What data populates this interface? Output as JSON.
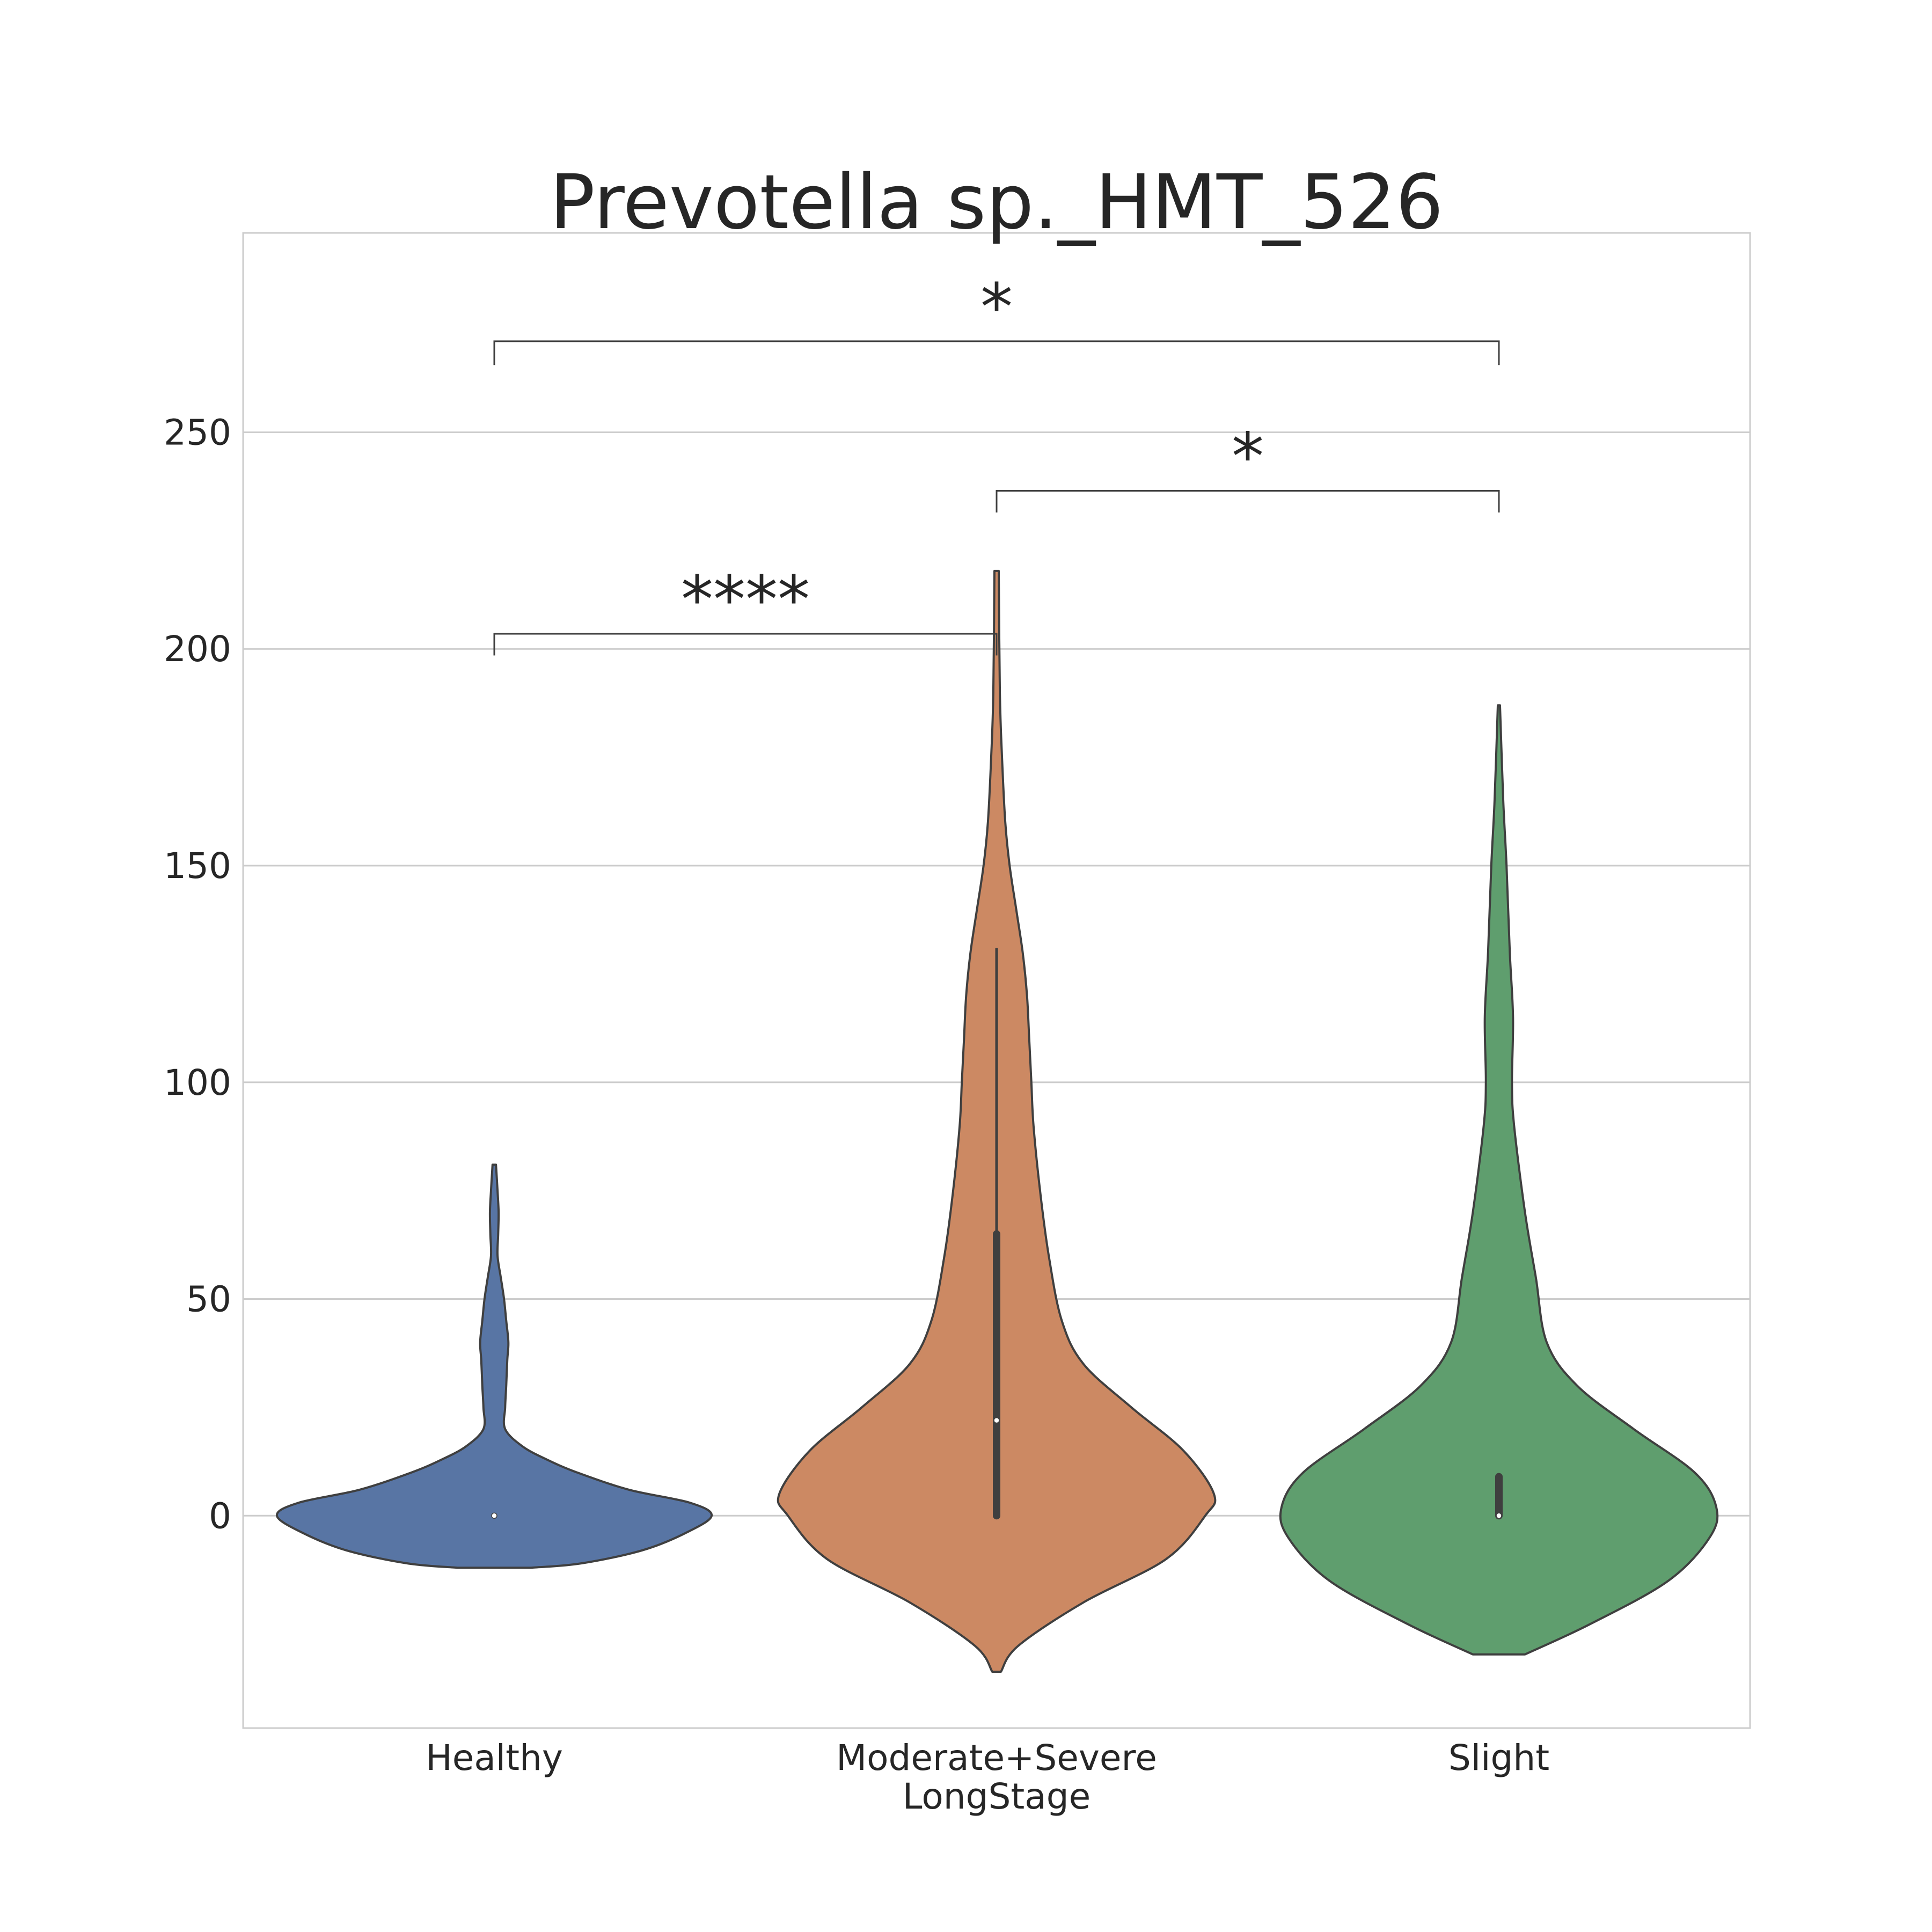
{
  "chart_data": {
    "type": "violin",
    "title": "Prevotella sp._HMT_526",
    "xlabel": "LongStage",
    "ylabel": "",
    "categories": [
      "Healthy",
      "Moderate+Severe",
      "Slight"
    ],
    "ylim": [
      -49,
      296
    ],
    "yticks": [
      0,
      50,
      100,
      150,
      200,
      250
    ],
    "grid": true,
    "colors": [
      "#5875a4",
      "#cc8963",
      "#5f9e6e"
    ],
    "outline_color": "#3f3f3f",
    "series": [
      {
        "category": "Healthy",
        "min": -12,
        "max": 81,
        "quartiles": [
          0,
          0,
          0
        ],
        "median": 0,
        "profile": [
          [
            -12,
            0.17
          ],
          [
            -11,
            0.4
          ],
          [
            -8,
            0.68
          ],
          [
            -4,
            0.88
          ],
          [
            0,
            1.0
          ],
          [
            3,
            0.9
          ],
          [
            6,
            0.62
          ],
          [
            10,
            0.38
          ],
          [
            13,
            0.24
          ],
          [
            16,
            0.13
          ],
          [
            20,
            0.05
          ],
          [
            25,
            0.05
          ],
          [
            30,
            0.055
          ],
          [
            36,
            0.06
          ],
          [
            40,
            0.065
          ],
          [
            45,
            0.055
          ],
          [
            50,
            0.045
          ],
          [
            55,
            0.03
          ],
          [
            60,
            0.015
          ],
          [
            65,
            0.018
          ],
          [
            70,
            0.02
          ],
          [
            75,
            0.015
          ],
          [
            81,
            0.008
          ]
        ]
      },
      {
        "category": "Moderate+Severe",
        "min": -36,
        "max": 218,
        "quartiles": [
          0,
          22,
          65
        ],
        "median": 22,
        "whiskers": [
          0,
          131
        ],
        "profile": [
          [
            -36,
            0.02
          ],
          [
            -30,
            0.1
          ],
          [
            -20,
            0.4
          ],
          [
            -10,
            0.78
          ],
          [
            0,
            0.96
          ],
          [
            5,
            1.0
          ],
          [
            15,
            0.86
          ],
          [
            25,
            0.62
          ],
          [
            35,
            0.4
          ],
          [
            45,
            0.3
          ],
          [
            60,
            0.24
          ],
          [
            75,
            0.2
          ],
          [
            90,
            0.17
          ],
          [
            100,
            0.16
          ],
          [
            110,
            0.15
          ],
          [
            120,
            0.14
          ],
          [
            130,
            0.12
          ],
          [
            140,
            0.09
          ],
          [
            150,
            0.06
          ],
          [
            160,
            0.04
          ],
          [
            175,
            0.025
          ],
          [
            190,
            0.015
          ],
          [
            218,
            0.01
          ]
        ]
      },
      {
        "category": "Slight",
        "min": -32,
        "max": 187,
        "quartiles": [
          0,
          0,
          9
        ],
        "median": 0,
        "whiskers": [
          0,
          9
        ],
        "profile": [
          [
            -32,
            0.12
          ],
          [
            -25,
            0.42
          ],
          [
            -15,
            0.78
          ],
          [
            -5,
            0.97
          ],
          [
            2,
            1.0
          ],
          [
            10,
            0.9
          ],
          [
            20,
            0.62
          ],
          [
            30,
            0.36
          ],
          [
            40,
            0.22
          ],
          [
            55,
            0.17
          ],
          [
            70,
            0.12
          ],
          [
            90,
            0.07
          ],
          [
            100,
            0.06
          ],
          [
            115,
            0.065
          ],
          [
            130,
            0.05
          ],
          [
            150,
            0.035
          ],
          [
            165,
            0.02
          ],
          [
            187,
            0.005
          ]
        ]
      }
    ],
    "annotations": [
      {
        "from": "Healthy",
        "to": "Moderate+Severe",
        "y": 203.5,
        "tip": 5,
        "label": "****"
      },
      {
        "from": "Moderate+Severe",
        "to": "Slight",
        "y": 236.5,
        "tip": 5,
        "label": "*"
      },
      {
        "from": "Healthy",
        "to": "Slight",
        "y": 271,
        "tip": 5.5,
        "label": "*"
      }
    ]
  }
}
